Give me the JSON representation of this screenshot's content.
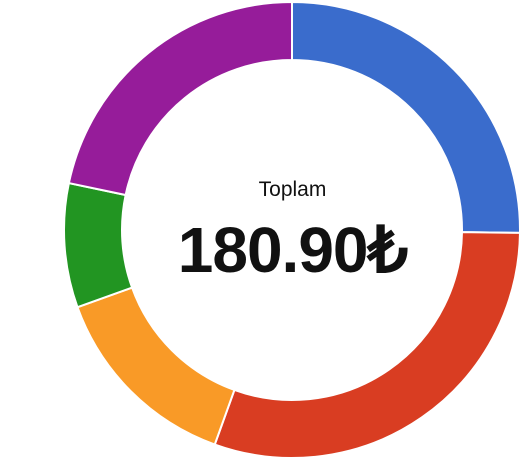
{
  "chart_data": {
    "type": "pie",
    "variant": "donut",
    "center": {
      "label": "Toplam",
      "value": "180.90₺"
    },
    "slices": [
      {
        "value": 25.2,
        "color": "#3a6ccc"
      },
      {
        "value": 30.3,
        "color": "#d93d22"
      },
      {
        "value": 14.0,
        "color": "#f99a27"
      },
      {
        "value": 8.8,
        "color": "#229522"
      },
      {
        "value": 21.7,
        "color": "#961c9a"
      }
    ],
    "unit": "percent"
  }
}
